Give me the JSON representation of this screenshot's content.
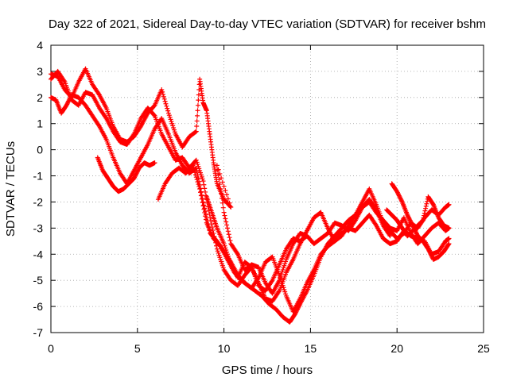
{
  "chart_data": {
    "type": "scatter",
    "title": "Day 322 of 2021, Sidereal Day-to-day VTEC variation (SDTVAR) for receiver bshm",
    "xlabel": "GPS time / hours",
    "ylabel": "SDTVAR / TECUs",
    "xlim": [
      0,
      25
    ],
    "ylim": [
      -7,
      4
    ],
    "x_ticks": [
      "0",
      "5",
      "10",
      "15",
      "20",
      "25"
    ],
    "y_ticks": [
      "4",
      "3",
      "2",
      "1",
      "0",
      "-1",
      "-2",
      "-3",
      "-4",
      "-5",
      "-6",
      "-7"
    ],
    "grid": true,
    "marker": "+",
    "color": "#ff0000",
    "series": [
      {
        "points": [
          [
            0.0,
            2.7
          ],
          [
            0.4,
            3.0
          ],
          [
            0.8,
            2.6
          ],
          [
            1.2,
            1.9
          ],
          [
            1.6,
            1.7
          ],
          [
            2.0,
            2.2
          ],
          [
            2.4,
            2.1
          ],
          [
            2.8,
            1.6
          ],
          [
            3.2,
            1.2
          ],
          [
            3.6,
            0.7
          ],
          [
            4.0,
            0.3
          ],
          [
            4.4,
            0.2
          ],
          [
            4.8,
            0.6
          ],
          [
            5.2,
            1.2
          ],
          [
            5.6,
            1.6
          ],
          [
            6.0,
            1.3
          ],
          [
            6.4,
            0.6
          ],
          [
            6.8,
            0.1
          ],
          [
            7.2,
            -0.4
          ],
          [
            7.6,
            -0.3
          ],
          [
            8.0,
            -0.7
          ],
          [
            8.4,
            -0.4
          ],
          [
            8.8,
            -1.2
          ],
          [
            9.2,
            -2.6
          ],
          [
            9.6,
            -3.8
          ],
          [
            10.0,
            -4.6
          ],
          [
            10.4,
            -5.0
          ],
          [
            10.8,
            -5.2
          ],
          [
            11.2,
            -4.8
          ],
          [
            11.6,
            -4.5
          ],
          [
            12.0,
            -5.1
          ],
          [
            12.4,
            -5.7
          ],
          [
            12.8,
            -5.8
          ],
          [
            13.2,
            -5.4
          ],
          [
            13.6,
            -4.7
          ],
          [
            14.0,
            -4.2
          ],
          [
            14.4,
            -3.6
          ],
          [
            14.8,
            -3.1
          ],
          [
            15.2,
            -2.6
          ],
          [
            15.6,
            -2.4
          ],
          [
            16.0,
            -3.0
          ],
          [
            16.4,
            -3.5
          ],
          [
            16.8,
            -3.3
          ],
          [
            17.2,
            -2.9
          ],
          [
            17.6,
            -2.5
          ],
          [
            18.0,
            -2.0
          ],
          [
            18.4,
            -1.5
          ],
          [
            18.8,
            -2.1
          ],
          [
            19.2,
            -2.8
          ],
          [
            19.6,
            -3.1
          ],
          [
            20.0,
            -3.4
          ],
          [
            20.4,
            -3.2
          ],
          [
            20.8,
            -2.8
          ],
          [
            21.2,
            -3.0
          ],
          [
            21.6,
            -2.6
          ],
          [
            22.0,
            -2.3
          ],
          [
            22.4,
            -2.5
          ],
          [
            22.8,
            -2.2
          ],
          [
            23.0,
            -2.1
          ]
        ]
      },
      {
        "points": [
          [
            0.0,
            2.9
          ],
          [
            0.4,
            2.8
          ],
          [
            0.8,
            2.3
          ],
          [
            1.2,
            2.0
          ],
          [
            1.6,
            2.6
          ],
          [
            2.0,
            3.1
          ],
          [
            2.4,
            2.5
          ],
          [
            2.8,
            2.1
          ],
          [
            3.2,
            1.6
          ],
          [
            3.6,
            0.9
          ],
          [
            4.0,
            0.4
          ],
          [
            4.4,
            0.3
          ],
          [
            4.8,
            0.5
          ],
          [
            5.2,
            0.9
          ],
          [
            5.6,
            1.4
          ],
          [
            6.0,
            1.7
          ],
          [
            6.4,
            2.3
          ],
          [
            6.8,
            1.4
          ],
          [
            7.2,
            0.6
          ],
          [
            7.6,
            0.1
          ],
          [
            8.0,
            0.5
          ],
          [
            8.4,
            0.7
          ],
          [
            8.6,
            2.7
          ],
          [
            8.8,
            1.8
          ],
          [
            9.0,
            1.5
          ],
          [
            9.2,
            0.5
          ],
          [
            9.4,
            -0.5
          ],
          [
            9.6,
            -1.3
          ],
          [
            10.0,
            -1.9
          ],
          [
            10.4,
            -2.2
          ],
          [
            9.6,
            -0.6
          ],
          [
            10.0,
            -2.4
          ],
          [
            10.4,
            -3.6
          ],
          [
            10.8,
            -4.0
          ],
          [
            11.2,
            -4.6
          ],
          [
            11.6,
            -4.4
          ],
          [
            12.0,
            -4.5
          ],
          [
            12.4,
            -5.1
          ],
          [
            12.8,
            -5.5
          ],
          [
            13.2,
            -5.0
          ],
          [
            13.6,
            -4.2
          ],
          [
            14.0,
            -3.6
          ],
          [
            14.4,
            -3.2
          ],
          [
            14.8,
            -3.3
          ],
          [
            15.2,
            -3.6
          ],
          [
            15.6,
            -3.4
          ],
          [
            16.0,
            -3.2
          ],
          [
            16.4,
            -2.8
          ],
          [
            16.8,
            -2.9
          ],
          [
            17.2,
            -3.1
          ],
          [
            17.6,
            -2.7
          ],
          [
            18.0,
            -2.2
          ],
          [
            18.4,
            -2.0
          ],
          [
            18.8,
            -2.4
          ],
          [
            19.2,
            -2.7
          ],
          [
            19.6,
            -3.0
          ],
          [
            20.0,
            -3.1
          ],
          [
            20.4,
            -2.6
          ],
          [
            20.8,
            -3.2
          ],
          [
            21.2,
            -3.6
          ],
          [
            21.6,
            -3.3
          ],
          [
            22.0,
            -3.0
          ],
          [
            22.4,
            -2.8
          ],
          [
            22.8,
            -3.1
          ],
          [
            23.0,
            -3.0
          ]
        ]
      },
      {
        "points": [
          [
            0.0,
            2.0
          ],
          [
            0.3,
            1.9
          ],
          [
            0.6,
            1.4
          ],
          [
            0.9,
            1.7
          ],
          [
            1.2,
            2.1
          ],
          [
            1.6,
            2.0
          ],
          [
            2.0,
            1.7
          ],
          [
            2.4,
            1.3
          ],
          [
            2.8,
            0.9
          ],
          [
            3.2,
            0.4
          ],
          [
            3.6,
            -0.3
          ],
          [
            4.0,
            -0.9
          ],
          [
            4.4,
            -1.3
          ],
          [
            4.8,
            -0.8
          ],
          [
            5.2,
            -0.3
          ],
          [
            5.6,
            0.2
          ],
          [
            6.0,
            0.8
          ],
          [
            6.4,
            1.2
          ],
          [
            6.8,
            0.6
          ],
          [
            7.2,
            -0.1
          ],
          [
            7.6,
            -0.6
          ],
          [
            8.0,
            -0.9
          ],
          [
            8.4,
            -0.7
          ],
          [
            8.8,
            -2.0
          ],
          [
            9.2,
            -3.2
          ],
          [
            9.6,
            -3.5
          ],
          [
            10.0,
            -3.9
          ],
          [
            10.4,
            -4.3
          ],
          [
            10.8,
            -4.8
          ],
          [
            11.2,
            -5.1
          ],
          [
            11.6,
            -5.3
          ],
          [
            12.0,
            -4.9
          ],
          [
            12.4,
            -4.3
          ],
          [
            12.8,
            -4.1
          ],
          [
            13.2,
            -4.8
          ],
          [
            13.6,
            -5.6
          ],
          [
            14.0,
            -6.2
          ],
          [
            14.4,
            -5.7
          ],
          [
            14.8,
            -5.1
          ],
          [
            15.2,
            -4.6
          ],
          [
            15.6,
            -4.0
          ],
          [
            16.0,
            -3.7
          ],
          [
            16.4,
            -3.5
          ],
          [
            16.8,
            -3.2
          ],
          [
            17.2,
            -3.0
          ],
          [
            17.6,
            -3.1
          ],
          [
            18.0,
            -2.8
          ],
          [
            18.4,
            -2.5
          ],
          [
            18.8,
            -2.9
          ],
          [
            19.2,
            -3.4
          ],
          [
            19.6,
            -3.6
          ],
          [
            20.0,
            -3.5
          ],
          [
            20.4,
            -3.1
          ],
          [
            20.8,
            -3.3
          ],
          [
            21.2,
            -3.4
          ],
          [
            21.6,
            -3.5
          ],
          [
            22.0,
            -4.0
          ],
          [
            22.4,
            -3.9
          ],
          [
            22.8,
            -3.5
          ],
          [
            23.0,
            -3.4
          ]
        ]
      },
      {
        "points": [
          [
            2.7,
            -0.3
          ],
          [
            3.0,
            -0.8
          ],
          [
            3.3,
            -1.1
          ],
          [
            3.6,
            -1.4
          ],
          [
            3.9,
            -1.6
          ],
          [
            4.2,
            -1.5
          ],
          [
            4.5,
            -1.3
          ],
          [
            4.8,
            -1.1
          ],
          [
            5.1,
            -0.7
          ],
          [
            5.4,
            -0.5
          ],
          [
            5.7,
            -0.6
          ],
          [
            6.0,
            -0.5
          ]
        ]
      },
      {
        "points": [
          [
            6.2,
            -1.9
          ],
          [
            6.6,
            -1.3
          ],
          [
            7.0,
            -0.9
          ],
          [
            7.4,
            -0.7
          ],
          [
            7.8,
            -0.9
          ],
          [
            8.2,
            -0.6
          ],
          [
            8.6,
            -1.5
          ],
          [
            9.0,
            -2.8
          ],
          [
            9.4,
            -3.4
          ],
          [
            9.8,
            -3.7
          ],
          [
            10.2,
            -4.2
          ],
          [
            10.6,
            -4.7
          ],
          [
            11.0,
            -5.0
          ],
          [
            11.4,
            -5.2
          ],
          [
            11.8,
            -5.4
          ],
          [
            12.2,
            -5.6
          ],
          [
            12.6,
            -5.9
          ],
          [
            13.0,
            -6.1
          ],
          [
            13.4,
            -6.4
          ],
          [
            13.8,
            -6.6
          ],
          [
            14.1,
            -6.3
          ],
          [
            14.4,
            -5.9
          ],
          [
            14.8,
            -5.4
          ],
          [
            15.2,
            -4.8
          ],
          [
            15.6,
            -4.1
          ],
          [
            16.0,
            -3.6
          ],
          [
            16.4,
            -3.3
          ],
          [
            16.8,
            -3.0
          ],
          [
            17.2,
            -2.7
          ],
          [
            17.6,
            -2.5
          ],
          [
            18.0,
            -2.2
          ],
          [
            18.4,
            -1.9
          ],
          [
            18.8,
            -2.3
          ],
          [
            19.2,
            -2.9
          ],
          [
            19.6,
            -3.3
          ]
        ]
      },
      {
        "points": [
          [
            9.0,
            -1.8
          ],
          [
            9.3,
            -2.4
          ],
          [
            9.6,
            -3.0
          ],
          [
            10.0,
            -3.6
          ],
          [
            10.4,
            -4.4
          ],
          [
            10.8,
            -4.9
          ],
          [
            11.2,
            -4.3
          ],
          [
            11.6,
            -4.5
          ],
          [
            12.0,
            -5.2
          ],
          [
            12.4,
            -5.4
          ],
          [
            12.8,
            -5.0
          ],
          [
            13.2,
            -4.4
          ],
          [
            13.6,
            -3.8
          ],
          [
            14.0,
            -3.4
          ],
          [
            14.4,
            -3.5
          ],
          [
            14.8,
            -3.3
          ]
        ]
      },
      {
        "points": [
          [
            19.7,
            -1.3
          ],
          [
            20.0,
            -1.6
          ],
          [
            20.3,
            -2.0
          ],
          [
            20.6,
            -2.5
          ],
          [
            20.9,
            -2.9
          ],
          [
            21.2,
            -3.3
          ],
          [
            21.5,
            -3.5
          ],
          [
            21.8,
            -3.8
          ],
          [
            22.1,
            -4.2
          ],
          [
            22.4,
            -4.1
          ],
          [
            22.7,
            -3.9
          ],
          [
            23.0,
            -3.6
          ]
        ]
      },
      {
        "points": [
          [
            19.4,
            -2.3
          ],
          [
            19.7,
            -2.5
          ],
          [
            20.0,
            -2.7
          ],
          [
            20.3,
            -3.0
          ],
          [
            20.6,
            -3.3
          ],
          [
            20.9,
            -3.1
          ],
          [
            21.2,
            -2.9
          ],
          [
            21.5,
            -2.7
          ],
          [
            21.8,
            -1.8
          ],
          [
            22.1,
            -2.1
          ],
          [
            22.4,
            -2.6
          ],
          [
            22.7,
            -2.9
          ],
          [
            23.0,
            -3.0
          ]
        ]
      }
    ]
  }
}
